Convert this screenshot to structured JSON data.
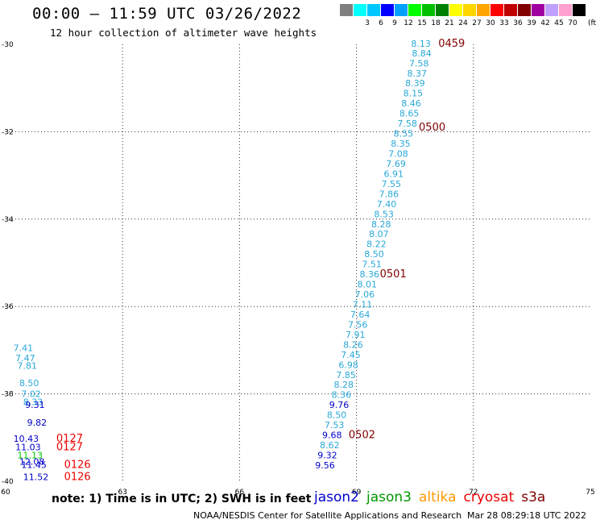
{
  "header": {
    "title": "00:00 – 11:59 UTC 03/26/2022",
    "subtitle": "12 hour collection of altimeter wave heights"
  },
  "scale": {
    "unit": "(ft)",
    "bins": [
      {
        "color": "#808080",
        "label": ""
      },
      {
        "color": "#00ffff",
        "label": "3"
      },
      {
        "color": "#00c8ff",
        "label": "6"
      },
      {
        "color": "#0000ff",
        "label": "9"
      },
      {
        "color": "#00a0ff",
        "label": "12"
      },
      {
        "color": "#00ff00",
        "label": "15"
      },
      {
        "color": "#00c000",
        "label": "18"
      },
      {
        "color": "#008000",
        "label": "21"
      },
      {
        "color": "#ffff00",
        "label": "24"
      },
      {
        "color": "#ffd700",
        "label": "27"
      },
      {
        "color": "#ffa500",
        "label": "30"
      },
      {
        "color": "#ff0000",
        "label": "33"
      },
      {
        "color": "#c00000",
        "label": "36"
      },
      {
        "color": "#800000",
        "label": "39"
      },
      {
        "color": "#a000a0",
        "label": "42"
      },
      {
        "color": "#c0a0ff",
        "label": "45"
      },
      {
        "color": "#ffa0d0",
        "label": "70"
      },
      {
        "color": "#000000",
        "label": ""
      }
    ]
  },
  "map": {
    "lon_range": [
      60,
      75
    ],
    "lat_range": [
      -40,
      -30
    ],
    "x_ticks": [
      {
        "v": 60,
        "label": "60"
      },
      {
        "v": 63,
        "label": "63"
      },
      {
        "v": 66,
        "label": "66"
      },
      {
        "v": 69,
        "label": "69"
      },
      {
        "v": 72,
        "label": "72"
      },
      {
        "v": 75,
        "label": "75"
      }
    ],
    "y_ticks": [
      {
        "v": -30,
        "label": "-30"
      },
      {
        "v": -32,
        "label": "-32"
      },
      {
        "v": -34,
        "label": "-34"
      },
      {
        "v": -36,
        "label": "-36"
      },
      {
        "v": -38,
        "label": "-38"
      },
      {
        "v": -40,
        "label": "-40"
      }
    ],
    "grid_lines": true
  },
  "chart_data": {
    "type": "scatter",
    "title": "00:00 – 11:59 UTC 03/26/2022",
    "subtitle": "12 hour collection of altimeter wave heights",
    "xlim": [
      60,
      75
    ],
    "ylim": [
      -40,
      -30
    ],
    "points": [
      {
        "lon": 70.4,
        "lat": -29.98,
        "text": "8.13",
        "color": "#29a8d8"
      },
      {
        "lon": 70.42,
        "lat": -30.2,
        "text": "8.84",
        "color": "#29a8d8"
      },
      {
        "lon": 70.35,
        "lat": -30.43,
        "text": "7.58",
        "color": "#29a8d8"
      },
      {
        "lon": 70.3,
        "lat": -30.66,
        "text": "8.37",
        "color": "#29a8d8"
      },
      {
        "lon": 70.25,
        "lat": -30.89,
        "text": "8.39",
        "color": "#29a8d8"
      },
      {
        "lon": 70.2,
        "lat": -31.12,
        "text": "8.15",
        "color": "#29a8d8"
      },
      {
        "lon": 70.15,
        "lat": -31.35,
        "text": "8.46",
        "color": "#29a8d8"
      },
      {
        "lon": 70.1,
        "lat": -31.58,
        "text": "8.65",
        "color": "#29a8d8"
      },
      {
        "lon": 70.05,
        "lat": -31.81,
        "text": "7.58",
        "color": "#29a8d8"
      },
      {
        "lon": 69.95,
        "lat": -32.04,
        "text": "8.55",
        "color": "#29a8d8"
      },
      {
        "lon": 69.88,
        "lat": -32.27,
        "text": "8.35",
        "color": "#29a8d8"
      },
      {
        "lon": 69.82,
        "lat": -32.5,
        "text": "7.08",
        "color": "#29a8d8"
      },
      {
        "lon": 69.76,
        "lat": -32.73,
        "text": "7.69",
        "color": "#29a8d8"
      },
      {
        "lon": 69.7,
        "lat": -32.96,
        "text": "6.91",
        "color": "#29a8d8"
      },
      {
        "lon": 69.64,
        "lat": -33.19,
        "text": "7.55",
        "color": "#29a8d8"
      },
      {
        "lon": 69.58,
        "lat": -33.42,
        "text": "7.86",
        "color": "#29a8d8"
      },
      {
        "lon": 69.52,
        "lat": -33.65,
        "text": "7.40",
        "color": "#29a8d8"
      },
      {
        "lon": 69.45,
        "lat": -33.88,
        "text": "8.53",
        "color": "#29a8d8"
      },
      {
        "lon": 69.38,
        "lat": -34.11,
        "text": "8.28",
        "color": "#29a8d8"
      },
      {
        "lon": 69.32,
        "lat": -34.34,
        "text": "8.07",
        "color": "#29a8d8"
      },
      {
        "lon": 69.26,
        "lat": -34.57,
        "text": "8.22",
        "color": "#29a8d8"
      },
      {
        "lon": 69.2,
        "lat": -34.8,
        "text": "8.50",
        "color": "#29a8d8"
      },
      {
        "lon": 69.14,
        "lat": -35.03,
        "text": "7.51",
        "color": "#29a8d8"
      },
      {
        "lon": 69.08,
        "lat": -35.26,
        "text": "8.36",
        "color": "#29a8d8"
      },
      {
        "lon": 69.02,
        "lat": -35.49,
        "text": "8.01",
        "color": "#29a8d8"
      },
      {
        "lon": 68.96,
        "lat": -35.72,
        "text": "7.06",
        "color": "#29a8d8"
      },
      {
        "lon": 68.9,
        "lat": -35.95,
        "text": "7.11",
        "color": "#29a8d8"
      },
      {
        "lon": 68.84,
        "lat": -36.18,
        "text": "7.64",
        "color": "#29a8d8"
      },
      {
        "lon": 68.78,
        "lat": -36.41,
        "text": "7.56",
        "color": "#29a8d8"
      },
      {
        "lon": 68.72,
        "lat": -36.64,
        "text": "7.91",
        "color": "#29a8d8"
      },
      {
        "lon": 68.66,
        "lat": -36.87,
        "text": "8.26",
        "color": "#29a8d8"
      },
      {
        "lon": 68.6,
        "lat": -37.1,
        "text": "7.45",
        "color": "#29a8d8"
      },
      {
        "lon": 68.54,
        "lat": -37.33,
        "text": "6.98",
        "color": "#29a8d8"
      },
      {
        "lon": 68.48,
        "lat": -37.56,
        "text": "7.85",
        "color": "#29a8d8"
      },
      {
        "lon": 68.42,
        "lat": -37.79,
        "text": "8.28",
        "color": "#29a8d8"
      },
      {
        "lon": 68.36,
        "lat": -38.02,
        "text": "8.36",
        "color": "#29a8d8"
      },
      {
        "lon": 68.3,
        "lat": -38.25,
        "text": "9.76",
        "color": "#0000cc"
      },
      {
        "lon": 68.24,
        "lat": -38.48,
        "text": "8.50",
        "color": "#29a8d8"
      },
      {
        "lon": 68.18,
        "lat": -38.71,
        "text": "7.53",
        "color": "#29a8d8"
      },
      {
        "lon": 68.12,
        "lat": -38.94,
        "text": "9.68",
        "color": "#0000cc"
      },
      {
        "lon": 68.06,
        "lat": -39.17,
        "text": "8.62",
        "color": "#29a8d8"
      },
      {
        "lon": 68.0,
        "lat": -39.4,
        "text": "9.32",
        "color": "#0000cc"
      },
      {
        "lon": 67.94,
        "lat": -39.63,
        "text": "9.56",
        "color": "#0000cc"
      },
      {
        "lon": 60.2,
        "lat": -36.95,
        "text": "7.41",
        "color": "#29a8d8"
      },
      {
        "lon": 60.25,
        "lat": -37.18,
        "text": "7.47",
        "color": "#29a8d8"
      },
      {
        "lon": 60.3,
        "lat": -37.35,
        "text": "7.81",
        "color": "#29a8d8"
      },
      {
        "lon": 60.35,
        "lat": -37.75,
        "text": "8.50",
        "color": "#29a8d8"
      },
      {
        "lon": 60.4,
        "lat": -38.0,
        "text": "7.02",
        "color": "#29a8d8"
      },
      {
        "lon": 60.45,
        "lat": -38.18,
        "text": "8.33",
        "color": "#29a8d8"
      },
      {
        "lon": 60.5,
        "lat": -38.25,
        "text": "9.31",
        "color": "#0000cc"
      },
      {
        "lon": 60.55,
        "lat": -38.65,
        "text": "9.82",
        "color": "#0000cc"
      },
      {
        "lon": 60.2,
        "lat": -39.02,
        "text": "10.43",
        "color": "#0000cc"
      },
      {
        "lon": 60.25,
        "lat": -39.22,
        "text": "11.03",
        "color": "#0000cc"
      },
      {
        "lon": 60.3,
        "lat": -39.4,
        "text": "11.13",
        "color": "#00cc00"
      },
      {
        "lon": 60.35,
        "lat": -39.55,
        "text": "12.08",
        "color": "#0000cc"
      },
      {
        "lon": 60.4,
        "lat": -39.62,
        "text": "11.45",
        "color": "#0000cc"
      },
      {
        "lon": 60.45,
        "lat": -39.9,
        "text": "11.52",
        "color": "#0000cc"
      }
    ],
    "time_labels": [
      {
        "lon": 71.1,
        "lat": -29.98,
        "text": "0459",
        "color": "#800000"
      },
      {
        "lon": 70.6,
        "lat": -31.9,
        "text": "0500",
        "color": "#800000"
      },
      {
        "lon": 69.6,
        "lat": -35.26,
        "text": "0501",
        "color": "#800000"
      },
      {
        "lon": 68.8,
        "lat": -38.94,
        "text": "0502",
        "color": "#800000"
      },
      {
        "lon": 61.3,
        "lat": -39.02,
        "text": "0127",
        "color": "#ee0000"
      },
      {
        "lon": 61.3,
        "lat": -39.22,
        "text": "0127",
        "color": "#ee0000"
      },
      {
        "lon": 61.5,
        "lat": -39.62,
        "text": "0126",
        "color": "#ee0000"
      },
      {
        "lon": 61.5,
        "lat": -39.9,
        "text": "0126",
        "color": "#ee0000"
      }
    ]
  },
  "note": "note: 1) Time is in UTC; 2) SWH is in feet",
  "satellites": [
    {
      "name": "jason2",
      "color": "#0000cc"
    },
    {
      "name": "jason3",
      "color": "#009900"
    },
    {
      "name": "altika",
      "color": "#ff9900"
    },
    {
      "name": "cryosat",
      "color": "#ee0000"
    },
    {
      "name": "s3a",
      "color": "#800000"
    }
  ],
  "footer": {
    "credit": "NOAA/NESDIS Center for Satellite Applications and Research",
    "generated": "Mar 28 08:29:18 UTC 2022"
  }
}
